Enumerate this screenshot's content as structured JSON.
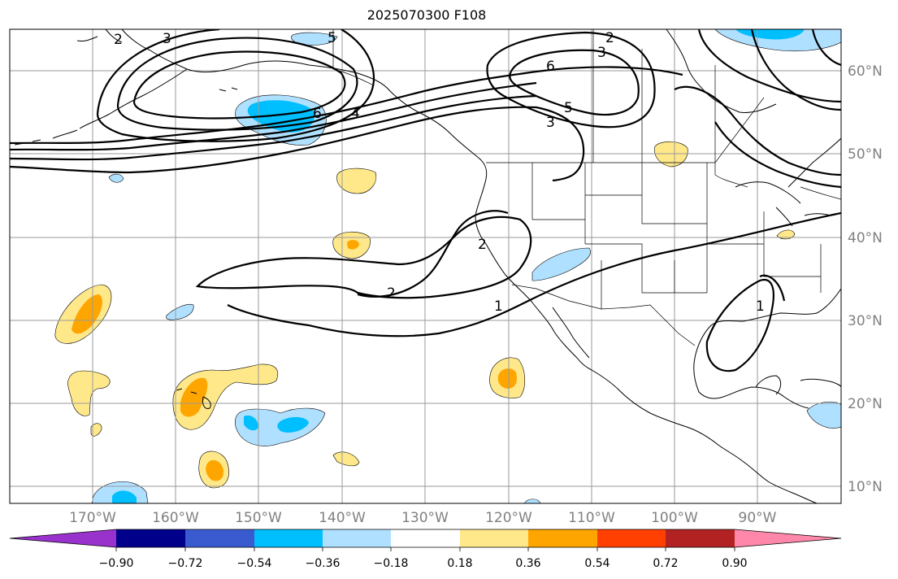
{
  "title": "2025070300 F108",
  "map": {
    "lat_labels": [
      "60°N",
      "50°N",
      "40°N",
      "30°N",
      "20°N",
      "10°N"
    ],
    "lon_labels": [
      "170°W",
      "160°W",
      "150°W",
      "140°W",
      "130°W",
      "120°W",
      "110°W",
      "100°W",
      "90°W"
    ],
    "contour_labels": [
      "2",
      "3",
      "5",
      "6",
      "4",
      "2",
      "3",
      "6",
      "5",
      "3",
      "2",
      "1",
      "1",
      "2"
    ]
  },
  "colorbar": {
    "colors": [
      "#9932cc",
      "#00008b",
      "#3a5bcf",
      "#00bfff",
      "#b0e0ff",
      "#ffffff",
      "#ffe88a",
      "#ffa500",
      "#ff4000",
      "#b22222",
      "#ff88aa"
    ],
    "tick_labels": [
      "−0.90",
      "−0.72",
      "−0.54",
      "−0.36",
      "−0.18",
      "0.18",
      "0.36",
      "0.54",
      "0.72",
      "0.90"
    ]
  }
}
